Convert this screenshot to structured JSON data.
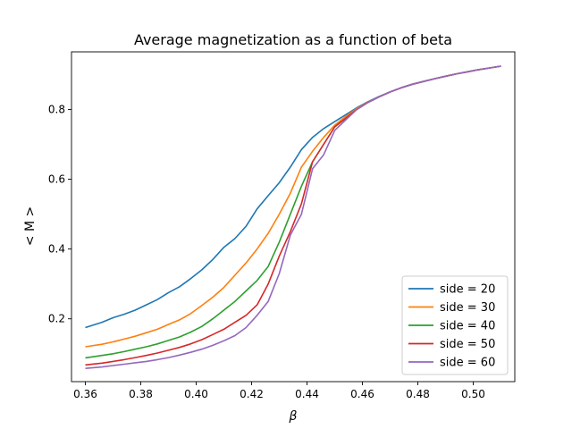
{
  "chart_data": {
    "type": "line",
    "title": "Average magnetization as a function of beta",
    "xlabel": "β",
    "ylabel": "< M >",
    "xlim": [
      0.355,
      0.515
    ],
    "ylim": [
      0.02,
      0.965
    ],
    "xticks": [
      0.36,
      0.38,
      0.4,
      0.42,
      0.44,
      0.46,
      0.48,
      0.5
    ],
    "xtick_labels": [
      "0.36",
      "0.38",
      "0.40",
      "0.42",
      "0.44",
      "0.46",
      "0.48",
      "0.50"
    ],
    "yticks": [
      0.2,
      0.4,
      0.6,
      0.8
    ],
    "ytick_labels": [
      "0.2",
      "0.4",
      "0.6",
      "0.8"
    ],
    "grid": false,
    "legend_position": "lower-right",
    "series": [
      {
        "name": "side = 20",
        "color": "#1f77b4",
        "x": [
          0.36,
          0.366,
          0.37,
          0.374,
          0.378,
          0.382,
          0.386,
          0.39,
          0.394,
          0.398,
          0.402,
          0.406,
          0.41,
          0.414,
          0.418,
          0.422,
          0.426,
          0.43,
          0.434,
          0.438,
          0.442,
          0.446,
          0.45,
          0.454,
          0.458,
          0.462,
          0.466,
          0.47,
          0.474,
          0.478,
          0.482,
          0.486,
          0.49,
          0.494,
          0.498,
          0.502,
          0.506,
          0.51
        ],
        "y": [
          0.175,
          0.19,
          0.203,
          0.213,
          0.225,
          0.24,
          0.255,
          0.275,
          0.292,
          0.315,
          0.34,
          0.37,
          0.405,
          0.43,
          0.465,
          0.515,
          0.553,
          0.59,
          0.635,
          0.685,
          0.72,
          0.745,
          0.765,
          0.785,
          0.805,
          0.822,
          0.837,
          0.85,
          0.862,
          0.872,
          0.88,
          0.888,
          0.895,
          0.902,
          0.908,
          0.914,
          0.919,
          0.924
        ]
      },
      {
        "name": "side = 30",
        "color": "#ff7f0e",
        "x": [
          0.36,
          0.366,
          0.37,
          0.374,
          0.378,
          0.382,
          0.386,
          0.39,
          0.394,
          0.398,
          0.402,
          0.406,
          0.41,
          0.414,
          0.418,
          0.422,
          0.426,
          0.43,
          0.434,
          0.438,
          0.442,
          0.446,
          0.45,
          0.454,
          0.458,
          0.462,
          0.466,
          0.47,
          0.474,
          0.478,
          0.482,
          0.486,
          0.49,
          0.494,
          0.498,
          0.502,
          0.506,
          0.51
        ],
        "y": [
          0.12,
          0.127,
          0.134,
          0.142,
          0.15,
          0.16,
          0.17,
          0.184,
          0.197,
          0.215,
          0.238,
          0.262,
          0.29,
          0.325,
          0.36,
          0.4,
          0.445,
          0.5,
          0.56,
          0.635,
          0.68,
          0.72,
          0.755,
          0.78,
          0.803,
          0.821,
          0.836,
          0.85,
          0.862,
          0.872,
          0.88,
          0.888,
          0.895,
          0.902,
          0.908,
          0.914,
          0.919,
          0.924
        ]
      },
      {
        "name": "side = 40",
        "color": "#2ca02c",
        "x": [
          0.36,
          0.366,
          0.37,
          0.374,
          0.378,
          0.382,
          0.386,
          0.39,
          0.394,
          0.398,
          0.402,
          0.406,
          0.41,
          0.414,
          0.418,
          0.422,
          0.426,
          0.43,
          0.434,
          0.438,
          0.442,
          0.446,
          0.45,
          0.454,
          0.458,
          0.462,
          0.466,
          0.47,
          0.474,
          0.478,
          0.482,
          0.486,
          0.49,
          0.494,
          0.498,
          0.502,
          0.506,
          0.51
        ],
        "y": [
          0.088,
          0.095,
          0.1,
          0.106,
          0.113,
          0.12,
          0.128,
          0.138,
          0.148,
          0.162,
          0.178,
          0.2,
          0.225,
          0.25,
          0.28,
          0.31,
          0.35,
          0.42,
          0.5,
          0.58,
          0.65,
          0.7,
          0.75,
          0.775,
          0.8,
          0.82,
          0.836,
          0.85,
          0.862,
          0.872,
          0.88,
          0.888,
          0.895,
          0.902,
          0.908,
          0.914,
          0.919,
          0.924
        ]
      },
      {
        "name": "side = 50",
        "color": "#d62728",
        "x": [
          0.36,
          0.366,
          0.37,
          0.374,
          0.378,
          0.382,
          0.386,
          0.39,
          0.394,
          0.398,
          0.402,
          0.406,
          0.41,
          0.414,
          0.418,
          0.422,
          0.426,
          0.43,
          0.434,
          0.438,
          0.442,
          0.446,
          0.45,
          0.454,
          0.458,
          0.462,
          0.466,
          0.47,
          0.474,
          0.478,
          0.482,
          0.486,
          0.49,
          0.494,
          0.498,
          0.502,
          0.506,
          0.51
        ],
        "y": [
          0.068,
          0.073,
          0.078,
          0.083,
          0.089,
          0.095,
          0.102,
          0.11,
          0.118,
          0.128,
          0.14,
          0.155,
          0.17,
          0.19,
          0.21,
          0.24,
          0.3,
          0.38,
          0.45,
          0.53,
          0.65,
          0.7,
          0.75,
          0.775,
          0.8,
          0.82,
          0.836,
          0.85,
          0.862,
          0.872,
          0.88,
          0.888,
          0.895,
          0.902,
          0.908,
          0.914,
          0.919,
          0.924
        ]
      },
      {
        "name": "side = 60",
        "color": "#9467bd",
        "x": [
          0.36,
          0.366,
          0.37,
          0.374,
          0.378,
          0.382,
          0.386,
          0.39,
          0.394,
          0.398,
          0.402,
          0.406,
          0.41,
          0.414,
          0.418,
          0.422,
          0.426,
          0.43,
          0.434,
          0.438,
          0.442,
          0.446,
          0.45,
          0.454,
          0.458,
          0.462,
          0.466,
          0.47,
          0.474,
          0.478,
          0.482,
          0.486,
          0.49,
          0.494,
          0.498,
          0.502,
          0.506,
          0.51
        ],
        "y": [
          0.058,
          0.062,
          0.066,
          0.07,
          0.074,
          0.078,
          0.083,
          0.089,
          0.096,
          0.104,
          0.113,
          0.124,
          0.137,
          0.152,
          0.175,
          0.21,
          0.25,
          0.33,
          0.44,
          0.5,
          0.63,
          0.67,
          0.74,
          0.77,
          0.8,
          0.82,
          0.836,
          0.85,
          0.862,
          0.872,
          0.88,
          0.888,
          0.895,
          0.902,
          0.908,
          0.914,
          0.919,
          0.924
        ]
      }
    ]
  }
}
